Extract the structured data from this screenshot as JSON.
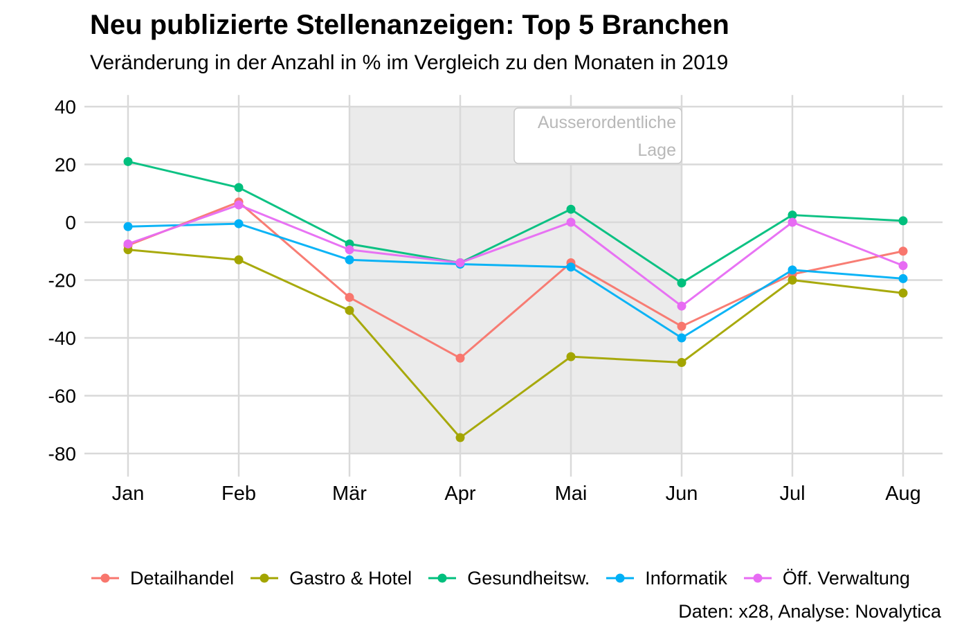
{
  "title": "Neu publizierte Stellenanzeigen: Top 5 Branchen",
  "subtitle": "Veränderung in der Anzahl in % im Vergleich zu den Monaten in 2019",
  "caption": "Daten: x28, Analyse: Novalytica",
  "chart_data": {
    "type": "line",
    "title": "Neu publizierte Stellenanzeigen: Top 5 Branchen",
    "subtitle": "Veränderung in der Anzahl in % im Vergleich zu den Monaten in 2019",
    "xlabel": "",
    "ylabel": "",
    "categories": [
      "Jan",
      "Feb",
      "Mär",
      "Apr",
      "Mai",
      "Jun",
      "Jul",
      "Aug"
    ],
    "ylim": [
      -88,
      44
    ],
    "yticks": [
      40,
      20,
      0,
      -20,
      -40,
      -60,
      -80
    ],
    "grid": true,
    "legend_position": "bottom",
    "shaded_region": {
      "from": "Mär",
      "to": "Jun",
      "label": "Ausserordentliche Lage"
    },
    "series": [
      {
        "name": "Detailhandel",
        "color": "#F8766D",
        "values": [
          -8,
          7,
          -26,
          -47,
          -14,
          -36,
          -18,
          -10
        ]
      },
      {
        "name": "Gastro & Hotel",
        "color": "#A3A500",
        "values": [
          -9.5,
          -13,
          -30.5,
          -74.5,
          -46.5,
          -48.5,
          -20,
          -24.5
        ]
      },
      {
        "name": "Gesundheitsw.",
        "color": "#00BF7D",
        "values": [
          21,
          12,
          -7.5,
          -14,
          4.5,
          -21,
          2.5,
          0.5
        ]
      },
      {
        "name": "Informatik",
        "color": "#00B0F6",
        "values": [
          -1.5,
          -0.5,
          -13,
          -14.5,
          -15.5,
          -40,
          -16.5,
          -19.5
        ]
      },
      {
        "name": "Öff. Verwaltung",
        "color": "#E76BF3",
        "values": [
          -7.5,
          6,
          -9.5,
          -14,
          0,
          -29,
          0,
          -15
        ]
      }
    ]
  }
}
